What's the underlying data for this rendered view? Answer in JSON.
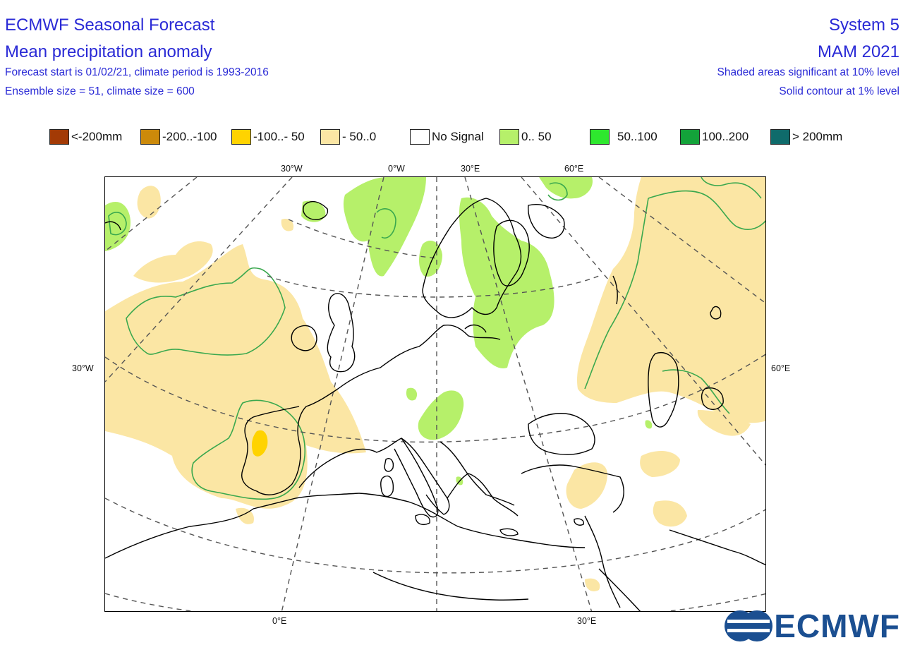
{
  "header": {
    "title": "ECMWF Seasonal Forecast",
    "subtitle": "Mean precipitation anomaly",
    "line3": "Forecast start is 01/02/21, climate period is 1993-2016",
    "line4": "Ensemble size = 51, climate size = 600",
    "system": "System 5",
    "period": "MAM 2021",
    "sig_note": "Shaded areas significant at 10% level",
    "contour_note": "Solid contour at 1% level"
  },
  "legend": [
    {
      "label": "<-200mm",
      "color": "#a33a05"
    },
    {
      "label": "-200..-100",
      "color": "#cc8a0a"
    },
    {
      "label": "-100..- 50",
      "color": "#ffd300"
    },
    {
      "label": "- 50..0",
      "color": "#fbe6a4"
    },
    {
      "label": "No Signal",
      "color": "#ffffff"
    },
    {
      "label": "0.. 50",
      "color": "#b6f06a"
    },
    {
      "label": "50..100",
      "color": "#2ee82e"
    },
    {
      "label": "100..200",
      "color": "#13a33a"
    },
    {
      "label": "> 200mm",
      "color": "#0f6b6b"
    }
  ],
  "axes": {
    "top": [
      "30°W",
      "0°W",
      "30°E",
      "60°E"
    ],
    "bottom": [
      "0°E",
      "30°E"
    ],
    "left": "30°W",
    "right": "60°E"
  },
  "colors": {
    "negative_light": "#fbe6a4",
    "negative_mid": "#ffd300",
    "positive_light": "#b6f06a",
    "contour_1pct": "#3aa84e",
    "coast": "#000000",
    "grid": "#555555"
  },
  "logo": {
    "text": "ECMWF",
    "icon": "ecmwf-logo-icon"
  }
}
